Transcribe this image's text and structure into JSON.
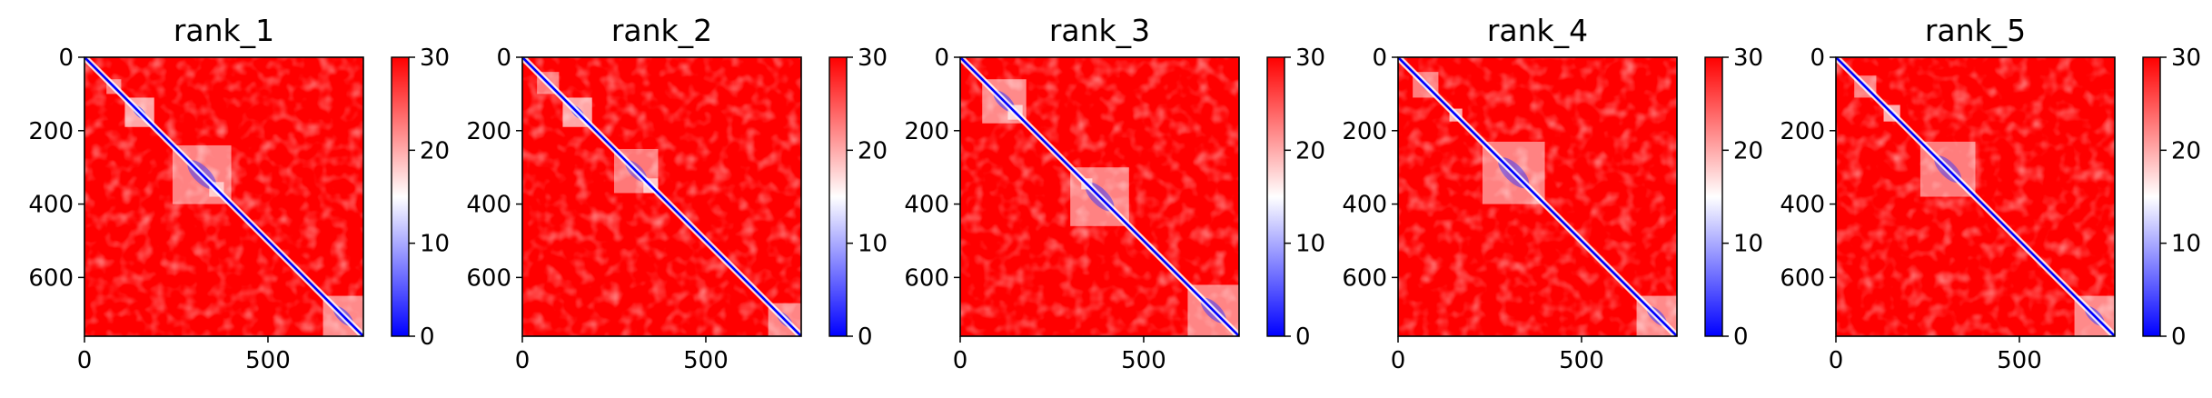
{
  "chart_data": [
    {
      "type": "heatmap",
      "title": "rank_1",
      "xticks": [
        0,
        500
      ],
      "yticks": [
        0,
        200,
        400,
        600
      ],
      "xlim": [
        0,
        760
      ],
      "ylim": [
        760,
        0
      ],
      "colorbar": {
        "ticks": [
          0,
          10,
          20,
          30
        ],
        "range": [
          0,
          30
        ],
        "colormap": "bwr",
        "colors": [
          "#0000ff",
          "#ffffff",
          "#ff0000"
        ]
      },
      "blue_blocks": [
        {
          "from": 110,
          "to": 190,
          "level": 0.85
        },
        {
          "from": 60,
          "to": 100,
          "level": 0.4
        },
        {
          "from": 240,
          "to": 400,
          "level": 0.45
        },
        {
          "from": 340,
          "to": 380,
          "level": 0.7
        },
        {
          "from": 650,
          "to": 760,
          "level": 0.55
        }
      ]
    },
    {
      "type": "heatmap",
      "title": "rank_2",
      "xticks": [
        0,
        500
      ],
      "yticks": [
        0,
        200,
        400,
        600
      ],
      "xlim": [
        0,
        760
      ],
      "ylim": [
        760,
        0
      ],
      "colorbar": {
        "ticks": [
          0,
          10,
          20,
          30
        ],
        "range": [
          0,
          30
        ],
        "colormap": "bwr",
        "colors": [
          "#0000ff",
          "#ffffff",
          "#ff0000"
        ]
      },
      "blue_blocks": [
        {
          "from": 110,
          "to": 190,
          "level": 0.85
        },
        {
          "from": 40,
          "to": 100,
          "level": 0.35
        },
        {
          "from": 250,
          "to": 370,
          "level": 0.35
        },
        {
          "from": 330,
          "to": 370,
          "level": 0.75
        },
        {
          "from": 670,
          "to": 760,
          "level": 0.5
        }
      ]
    },
    {
      "type": "heatmap",
      "title": "rank_3",
      "xticks": [
        0,
        500
      ],
      "yticks": [
        0,
        200,
        400,
        600
      ],
      "xlim": [
        0,
        760
      ],
      "ylim": [
        760,
        0
      ],
      "colorbar": {
        "ticks": [
          0,
          10,
          20,
          30
        ],
        "range": [
          0,
          30
        ],
        "colormap": "bwr",
        "colors": [
          "#0000ff",
          "#ffffff",
          "#ff0000"
        ]
      },
      "blue_blocks": [
        {
          "from": 60,
          "to": 180,
          "level": 0.55
        },
        {
          "from": 130,
          "to": 170,
          "level": 0.85
        },
        {
          "from": 300,
          "to": 460,
          "level": 0.45
        },
        {
          "from": 330,
          "to": 360,
          "level": 0.8
        },
        {
          "from": 620,
          "to": 760,
          "level": 0.5
        }
      ]
    },
    {
      "type": "heatmap",
      "title": "rank_4",
      "xticks": [
        0,
        500
      ],
      "yticks": [
        0,
        200,
        400,
        600
      ],
      "xlim": [
        0,
        760
      ],
      "ylim": [
        760,
        0
      ],
      "colorbar": {
        "ticks": [
          0,
          10,
          20,
          30
        ],
        "range": [
          0,
          30
        ],
        "colormap": "bwr",
        "colors": [
          "#0000ff",
          "#ffffff",
          "#ff0000"
        ]
      },
      "blue_blocks": [
        {
          "from": 140,
          "to": 175,
          "level": 0.95
        },
        {
          "from": 40,
          "to": 110,
          "level": 0.4
        },
        {
          "from": 230,
          "to": 400,
          "level": 0.45
        },
        {
          "from": 650,
          "to": 760,
          "level": 0.55
        }
      ]
    },
    {
      "type": "heatmap",
      "title": "rank_5",
      "xticks": [
        0,
        500
      ],
      "yticks": [
        0,
        200,
        400,
        600
      ],
      "xlim": [
        0,
        760
      ],
      "ylim": [
        760,
        0
      ],
      "colorbar": {
        "ticks": [
          0,
          10,
          20,
          30
        ],
        "range": [
          0,
          30
        ],
        "colormap": "bwr",
        "colors": [
          "#0000ff",
          "#ffffff",
          "#ff0000"
        ]
      },
      "blue_blocks": [
        {
          "from": 130,
          "to": 175,
          "level": 0.9
        },
        {
          "from": 50,
          "to": 110,
          "level": 0.4
        },
        {
          "from": 230,
          "to": 380,
          "level": 0.4
        },
        {
          "from": 650,
          "to": 760,
          "level": 0.55
        }
      ]
    }
  ]
}
